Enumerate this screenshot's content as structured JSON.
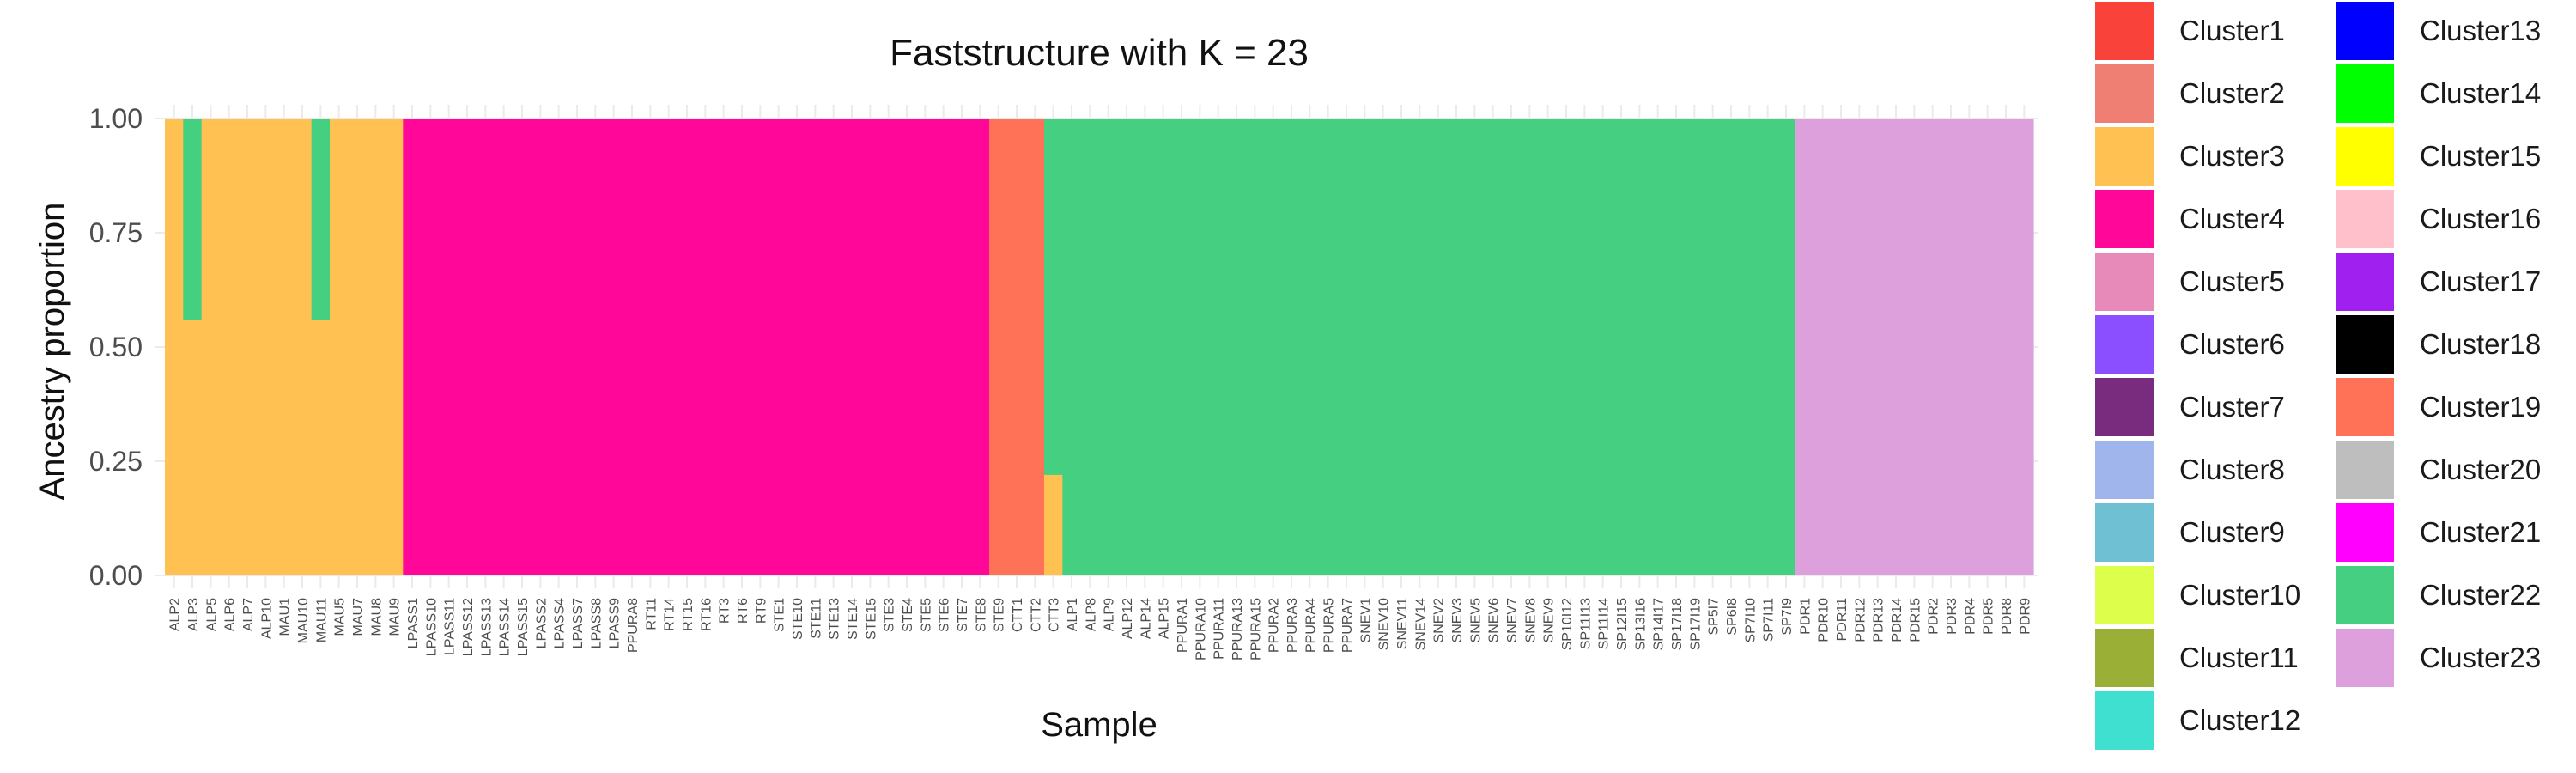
{
  "chart_data": {
    "type": "bar",
    "stacked": true,
    "title": "Faststructure with K = 23",
    "xlabel": "Sample",
    "ylabel": "Ancestry proportion",
    "ylim": [
      0,
      1
    ],
    "yticks": [
      "0.00",
      "0.25",
      "0.50",
      "0.75",
      "1.00"
    ],
    "grid": true,
    "legend_position": "right",
    "x_tick_labels": [
      "ALP2",
      "ALP3",
      "ALP5",
      "ALP6",
      "ALP7",
      "ALP10",
      "MAU1",
      "MAU10",
      "MAU11",
      "MAU5",
      "MAU7",
      "MAU8",
      "MAU9",
      "LPASS1",
      "LPASS10",
      "LPASS11",
      "LPASS12",
      "LPASS13",
      "LPASS14",
      "LPASS15",
      "LPASS2",
      "LPASS4",
      "LPASS7",
      "LPASS8",
      "LPASS9",
      "PPURA8",
      "RT11",
      "RT14",
      "RT15",
      "RT16",
      "RT3",
      "RT6",
      "RT9",
      "STE1",
      "STE10",
      "STE11",
      "STE13",
      "STE14",
      "STE15",
      "STE3",
      "STE4",
      "STE5",
      "STE6",
      "STE7",
      "STE8",
      "STE9",
      "CTT1",
      "CTT2",
      "CTT3",
      "ALP1",
      "ALP8",
      "ALP9",
      "ALP12",
      "ALP14",
      "ALP15",
      "PPURA1",
      "PPURA10",
      "PPURA11",
      "PPURA13",
      "PPURA15",
      "PPURA2",
      "PPURA3",
      "PPURA4",
      "PPURA5",
      "PPURA7",
      "SNEV1",
      "SNEV10",
      "SNEV11",
      "SNEV14",
      "SNEV2",
      "SNEV3",
      "SNEV5",
      "SNEV6",
      "SNEV7",
      "SNEV8",
      "SNEV9",
      "SP10I12",
      "SP11I13",
      "SP11I14",
      "SP12I15",
      "SP13I16",
      "SP14I17",
      "SP17I18",
      "SP17I19",
      "SP5I7",
      "SP6I8",
      "SP7I10",
      "SP7I11",
      "SP7I9",
      "PDR1",
      "PDR10",
      "PDR11",
      "PDR12",
      "PDR13",
      "PDR14",
      "PDR15",
      "PDR2",
      "PDR3",
      "PDR4",
      "PDR5",
      "PDR8",
      "PDR9"
    ],
    "legend": [
      {
        "name": "Cluster1",
        "color": "#F8423A"
      },
      {
        "name": "Cluster2",
        "color": "#EE7F72"
      },
      {
        "name": "Cluster3",
        "color": "#FEC152"
      },
      {
        "name": "Cluster4",
        "color": "#FF0799"
      },
      {
        "name": "Cluster5",
        "color": "#E78AB9"
      },
      {
        "name": "Cluster6",
        "color": "#8C4FFF"
      },
      {
        "name": "Cluster7",
        "color": "#792C7E"
      },
      {
        "name": "Cluster8",
        "color": "#A0B5EC"
      },
      {
        "name": "Cluster9",
        "color": "#6FC0D3"
      },
      {
        "name": "Cluster10",
        "color": "#DDFE4B"
      },
      {
        "name": "Cluster11",
        "color": "#9AAF36"
      },
      {
        "name": "Cluster12",
        "color": "#40E0D0"
      },
      {
        "name": "Cluster13",
        "color": "#0000FF"
      },
      {
        "name": "Cluster14",
        "color": "#00FF00"
      },
      {
        "name": "Cluster15",
        "color": "#FFFF00"
      },
      {
        "name": "Cluster16",
        "color": "#FFC0CB"
      },
      {
        "name": "Cluster17",
        "color": "#A020F0"
      },
      {
        "name": "Cluster18",
        "color": "#000000"
      },
      {
        "name": "Cluster19",
        "color": "#FF7257"
      },
      {
        "name": "Cluster20",
        "color": "#BEBEBE"
      },
      {
        "name": "Cluster21",
        "color": "#FF00FF"
      },
      {
        "name": "Cluster22",
        "color": "#45CF81"
      },
      {
        "name": "Cluster23",
        "color": "#DDA0DD"
      }
    ],
    "samples": [
      {
        "name": "ALP2",
        "cluster3": 1.0
      },
      {
        "name": "ALP3",
        "cluster3": 0.56,
        "cluster22": 0.44
      },
      {
        "name": "ALP5",
        "cluster3": 1.0
      },
      {
        "name": "ALP6",
        "cluster3": 1.0
      },
      {
        "name": "ALP7",
        "cluster3": 1.0
      },
      {
        "name": "ALP10",
        "cluster3": 1.0
      },
      {
        "name": "MAU1",
        "cluster3": 1.0
      },
      {
        "name": "MAU10",
        "cluster3": 1.0
      },
      {
        "name": "MAU11",
        "cluster3": 0.56,
        "cluster22": 0.44
      },
      {
        "name": "MAU5",
        "cluster3": 1.0
      },
      {
        "name": "MAU7",
        "cluster3": 1.0
      },
      {
        "name": "MAU8",
        "cluster3": 1.0
      },
      {
        "name": "MAU9",
        "cluster3": 1.0
      },
      {
        "name": "LPASS1",
        "cluster4": 1.0
      },
      {
        "name": "LPASS10",
        "cluster4": 1.0
      },
      {
        "name": "LPASS11",
        "cluster4": 1.0
      },
      {
        "name": "LPASS12",
        "cluster4": 1.0
      },
      {
        "name": "LPASS13",
        "cluster4": 1.0
      },
      {
        "name": "LPASS14",
        "cluster4": 1.0
      },
      {
        "name": "LPASS15",
        "cluster4": 1.0
      },
      {
        "name": "LPASS2",
        "cluster4": 1.0
      },
      {
        "name": "LPASS4",
        "cluster4": 1.0
      },
      {
        "name": "LPASS7",
        "cluster4": 1.0
      },
      {
        "name": "LPASS8",
        "cluster4": 1.0
      },
      {
        "name": "LPASS9",
        "cluster4": 1.0
      },
      {
        "name": "PPURA8",
        "cluster4": 1.0
      },
      {
        "name": "RT11",
        "cluster4": 1.0
      },
      {
        "name": "RT14",
        "cluster4": 1.0
      },
      {
        "name": "RT15",
        "cluster4": 1.0
      },
      {
        "name": "RT16",
        "cluster4": 1.0
      },
      {
        "name": "RT3",
        "cluster4": 1.0
      },
      {
        "name": "RT6",
        "cluster4": 1.0
      },
      {
        "name": "RT9",
        "cluster4": 1.0
      },
      {
        "name": "STE1",
        "cluster4": 1.0
      },
      {
        "name": "STE10",
        "cluster4": 1.0
      },
      {
        "name": "STE11",
        "cluster4": 1.0
      },
      {
        "name": "STE13",
        "cluster4": 1.0
      },
      {
        "name": "STE14",
        "cluster4": 1.0
      },
      {
        "name": "STE15",
        "cluster4": 1.0
      },
      {
        "name": "STE3",
        "cluster4": 1.0
      },
      {
        "name": "STE4",
        "cluster4": 1.0
      },
      {
        "name": "STE5",
        "cluster4": 1.0
      },
      {
        "name": "STE6",
        "cluster4": 1.0
      },
      {
        "name": "STE7",
        "cluster4": 1.0
      },
      {
        "name": "STE8",
        "cluster4": 1.0
      },
      {
        "name": "STE9",
        "cluster19": 1.0
      },
      {
        "name": "CTT1",
        "cluster19": 1.0
      },
      {
        "name": "CTT2",
        "cluster19": 1.0
      },
      {
        "name": "CTT3",
        "cluster3": 0.22,
        "cluster22": 0.78
      },
      {
        "name": "ALP1",
        "cluster22": 1.0
      },
      {
        "name": "ALP8",
        "cluster22": 1.0
      },
      {
        "name": "ALP9",
        "cluster22": 1.0
      },
      {
        "name": "ALP12",
        "cluster22": 1.0
      },
      {
        "name": "ALP14",
        "cluster22": 1.0
      },
      {
        "name": "ALP15",
        "cluster22": 1.0
      },
      {
        "name": "PPURA1",
        "cluster22": 1.0
      },
      {
        "name": "PPURA10",
        "cluster22": 1.0
      },
      {
        "name": "PPURA11",
        "cluster22": 1.0
      },
      {
        "name": "PPURA13",
        "cluster22": 1.0
      },
      {
        "name": "PPURA15",
        "cluster22": 1.0
      },
      {
        "name": "PPURA2",
        "cluster22": 1.0
      },
      {
        "name": "PPURA3",
        "cluster22": 1.0
      },
      {
        "name": "PPURA4",
        "cluster22": 1.0
      },
      {
        "name": "PPURA5",
        "cluster22": 1.0
      },
      {
        "name": "PPURA7",
        "cluster22": 1.0
      },
      {
        "name": "SNEV1",
        "cluster22": 1.0
      },
      {
        "name": "SNEV10",
        "cluster22": 1.0
      },
      {
        "name": "SNEV11",
        "cluster22": 1.0
      },
      {
        "name": "SNEV14",
        "cluster22": 1.0
      },
      {
        "name": "SNEV2",
        "cluster22": 1.0
      },
      {
        "name": "SNEV3",
        "cluster22": 1.0
      },
      {
        "name": "SNEV5",
        "cluster22": 1.0
      },
      {
        "name": "SNEV6",
        "cluster22": 1.0
      },
      {
        "name": "SNEV7",
        "cluster22": 1.0
      },
      {
        "name": "SNEV8",
        "cluster22": 1.0
      },
      {
        "name": "SNEV9",
        "cluster22": 1.0
      },
      {
        "name": "SP10I12",
        "cluster22": 1.0
      },
      {
        "name": "SP11I13",
        "cluster22": 1.0
      },
      {
        "name": "SP11I14",
        "cluster22": 1.0
      },
      {
        "name": "SP12I15",
        "cluster22": 1.0
      },
      {
        "name": "SP13I16",
        "cluster22": 1.0
      },
      {
        "name": "SP14I17",
        "cluster22": 1.0
      },
      {
        "name": "SP17I18",
        "cluster22": 1.0
      },
      {
        "name": "SP17I19",
        "cluster22": 1.0
      },
      {
        "name": "SP5I7",
        "cluster22": 1.0
      },
      {
        "name": "SP6I8",
        "cluster22": 1.0
      },
      {
        "name": "SP7I10",
        "cluster22": 1.0
      },
      {
        "name": "SP7I11",
        "cluster22": 1.0
      },
      {
        "name": "SP7I9",
        "cluster22": 1.0
      },
      {
        "name": "PDR1",
        "cluster23": 1.0
      },
      {
        "name": "PDR10",
        "cluster23": 1.0
      },
      {
        "name": "PDR11",
        "cluster23": 1.0
      },
      {
        "name": "PDR12",
        "cluster23": 1.0
      },
      {
        "name": "PDR13",
        "cluster23": 1.0
      },
      {
        "name": "PDR14",
        "cluster23": 1.0
      },
      {
        "name": "PDR15",
        "cluster23": 1.0
      },
      {
        "name": "PDR2",
        "cluster23": 1.0
      },
      {
        "name": "PDR3",
        "cluster23": 1.0
      },
      {
        "name": "PDR4",
        "cluster23": 1.0
      },
      {
        "name": "PDR5",
        "cluster23": 1.0
      },
      {
        "name": "PDR8",
        "cluster23": 1.0
      },
      {
        "name": "PDR9",
        "cluster23": 1.0
      }
    ]
  }
}
